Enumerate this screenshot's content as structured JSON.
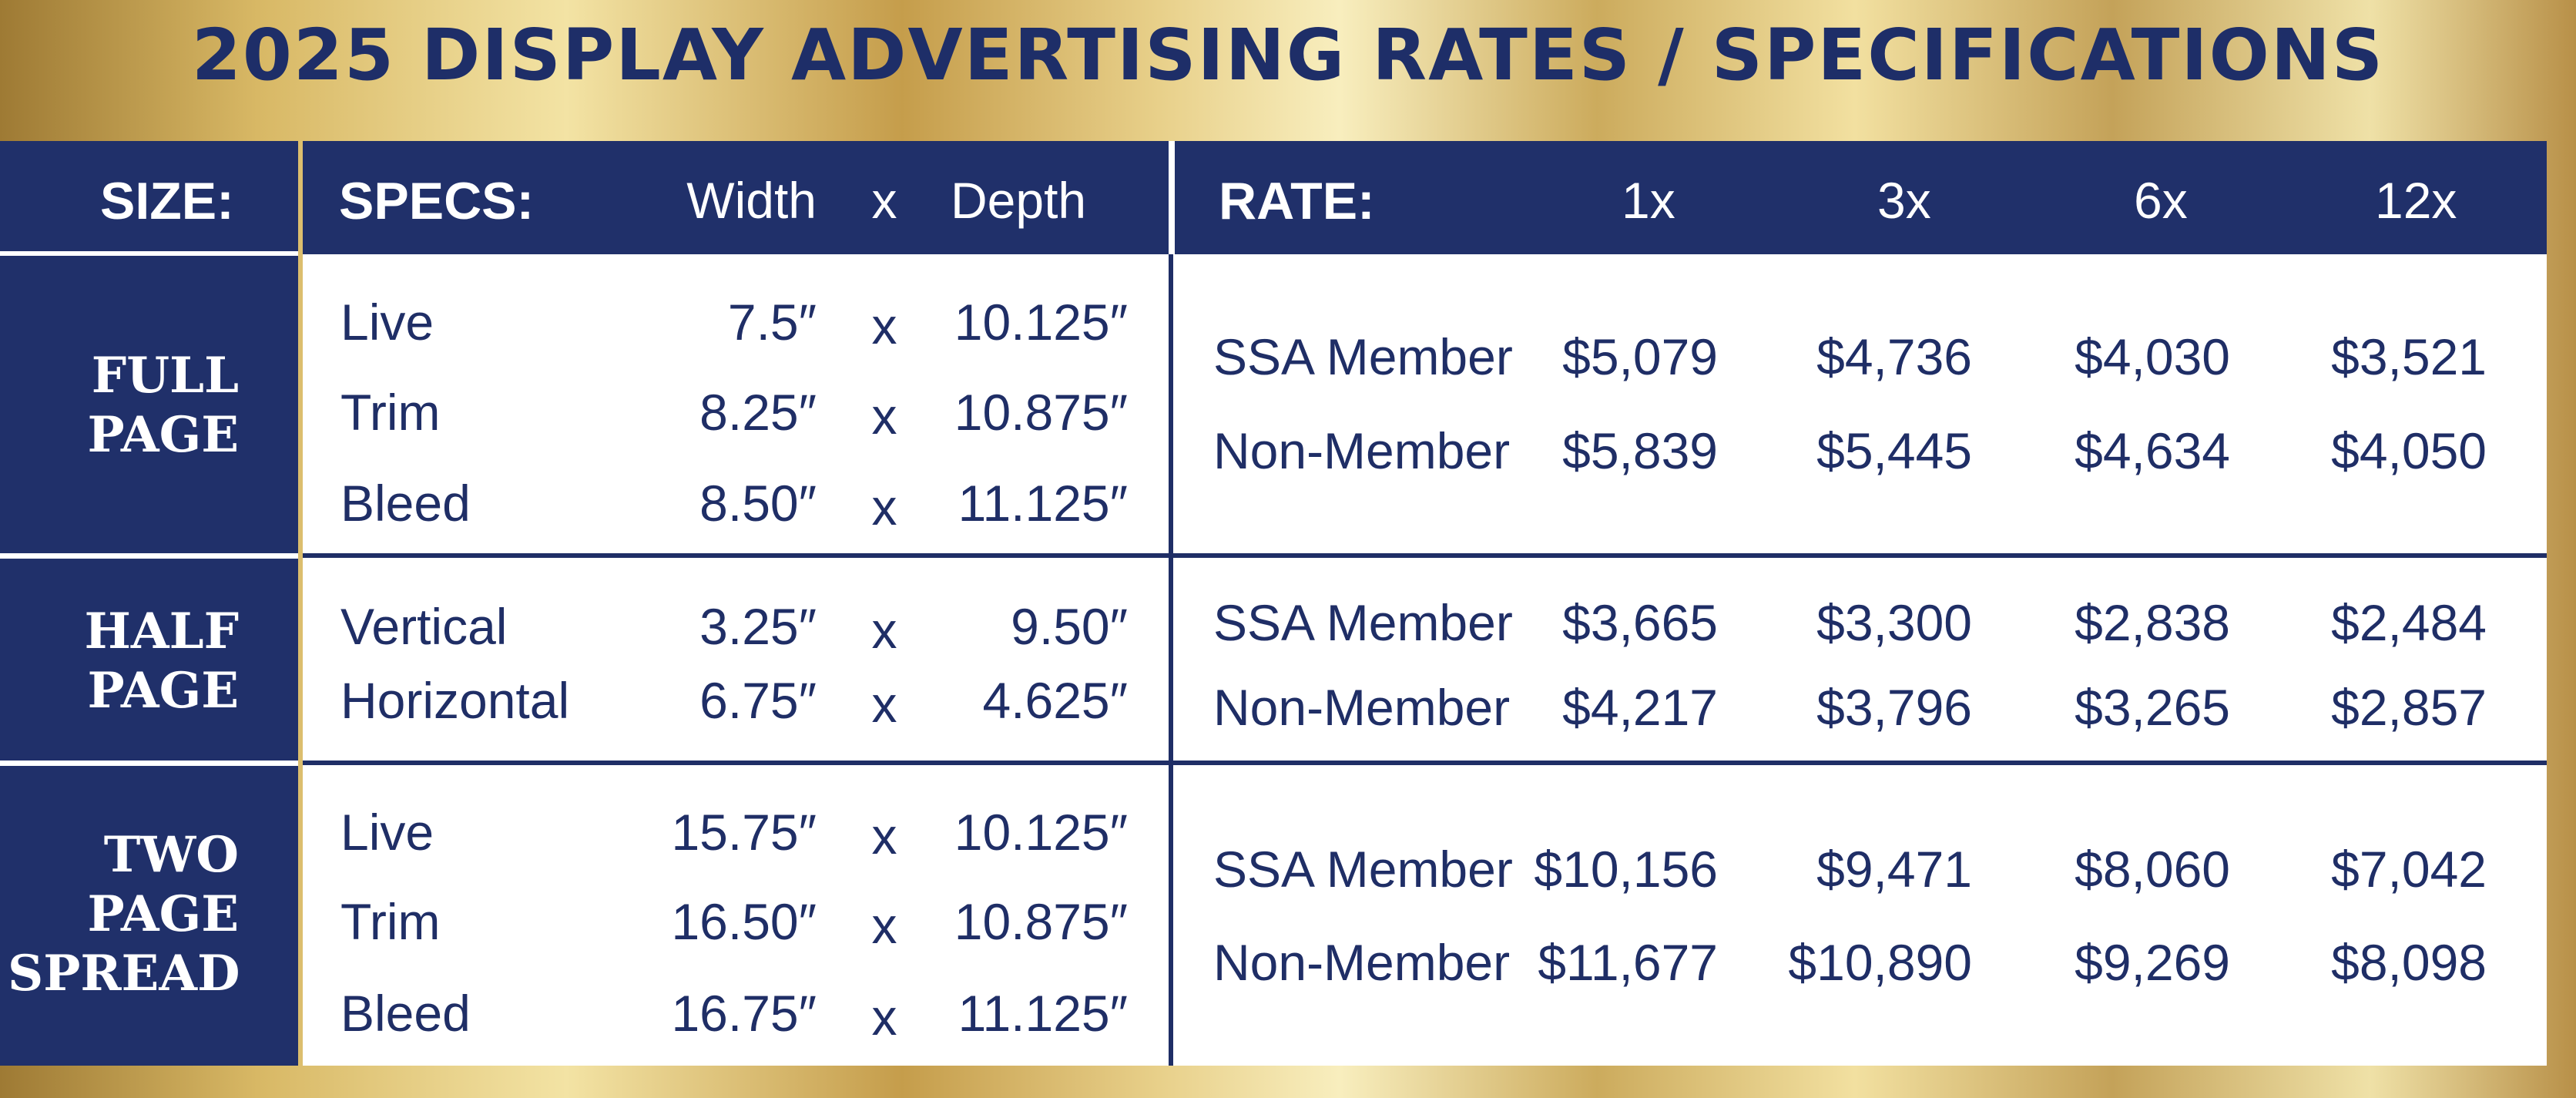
{
  "title": "2025 DISPLAY ADVERTISING RATES / SPECIFICATIONS",
  "header": {
    "size": "SIZE:",
    "specs": "SPECS:",
    "width": "Width",
    "x": "x",
    "depth": "Depth",
    "rate": "RATE:",
    "frequencies": [
      "1x",
      "3x",
      "6x",
      "12x"
    ]
  },
  "rows": [
    {
      "size_lines": [
        "FULL",
        "PAGE"
      ],
      "specs": [
        {
          "label": "Live",
          "width": "7.5″",
          "x": "x",
          "depth": "10.125″"
        },
        {
          "label": "Trim",
          "width": "8.25″",
          "x": "x",
          "depth": "10.875″"
        },
        {
          "label": "Bleed",
          "width": "8.50″",
          "x": "x",
          "depth": "11.125″"
        }
      ],
      "rates": [
        {
          "label": "SSA Member",
          "values": [
            "$5,079",
            "$4,736",
            "$4,030",
            "$3,521"
          ]
        },
        {
          "label": "Non-Member",
          "values": [
            "$5,839",
            "$5,445",
            "$4,634",
            "$4,050"
          ]
        }
      ]
    },
    {
      "size_lines": [
        "HALF",
        "PAGE"
      ],
      "specs": [
        {
          "label": "Vertical",
          "width": "3.25″",
          "x": "x",
          "depth": "9.50″"
        },
        {
          "label": "Horizontal",
          "width": "6.75″",
          "x": "x",
          "depth": "4.625″"
        }
      ],
      "rates": [
        {
          "label": "SSA Member",
          "values": [
            "$3,665",
            "$3,300",
            "$2,838",
            "$2,484"
          ]
        },
        {
          "label": "Non-Member",
          "values": [
            "$4,217",
            "$3,796",
            "$3,265",
            "$2,857"
          ]
        }
      ]
    },
    {
      "size_lines": [
        "TWO",
        "PAGE",
        "SPREAD"
      ],
      "specs": [
        {
          "label": "Live",
          "width": "15.75″",
          "x": "x",
          "depth": "10.125″"
        },
        {
          "label": "Trim",
          "width": "16.50″",
          "x": "x",
          "depth": "10.875″"
        },
        {
          "label": "Bleed",
          "width": "16.75″",
          "x": "x",
          "depth": "11.125″"
        }
      ],
      "rates": [
        {
          "label": "SSA Member",
          "values": [
            "$10,156",
            "$9,471",
            "$8,060",
            "$7,042"
          ]
        },
        {
          "label": "Non-Member",
          "values": [
            "$11,677",
            "$10,890",
            "$9,269",
            "$8,098"
          ]
        }
      ]
    }
  ]
}
